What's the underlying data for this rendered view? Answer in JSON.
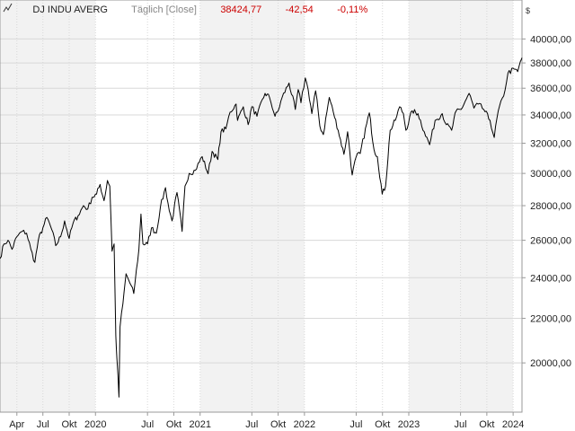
{
  "header": {
    "instrument": "DJ INDU AVERG",
    "interval": "Täglich [Close]",
    "last": "38424,77",
    "change": "-42,54",
    "change_pct": "-0,11%",
    "currency": "$"
  },
  "colors": {
    "line": "#000000",
    "negative": "#cc0000",
    "band": "#f2f2f2",
    "grid": "#d8d8d8",
    "axis": "#999999",
    "interval_text": "#888888"
  },
  "chart_data": {
    "type": "line",
    "title": "",
    "xlabel": "",
    "ylabel": "",
    "y_scale": "log",
    "ylim": [
      18000,
      42000
    ],
    "y_ticks": [
      20000,
      22000,
      24000,
      26000,
      28000,
      30000,
      32000,
      34000,
      36000,
      38000,
      40000
    ],
    "y_tick_labels": [
      "20000,00",
      "22000,00",
      "24000,00",
      "26000,00",
      "28000,00",
      "30000,00",
      "32000,00",
      "34000,00",
      "36000,00",
      "38000,00",
      "40000,00"
    ],
    "x_range": [
      "2019-02-01",
      "2024-02-01"
    ],
    "x_ticks": [
      {
        "date": "2019-04-01",
        "label": "Apr"
      },
      {
        "date": "2019-07-01",
        "label": "Jul"
      },
      {
        "date": "2019-10-01",
        "label": "Okt"
      },
      {
        "date": "2020-01-01",
        "label": "2020"
      },
      {
        "date": "2020-07-01",
        "label": "Jul"
      },
      {
        "date": "2020-10-01",
        "label": "Okt"
      },
      {
        "date": "2021-01-01",
        "label": "2021"
      },
      {
        "date": "2021-07-01",
        "label": "Jul"
      },
      {
        "date": "2021-10-01",
        "label": "Okt"
      },
      {
        "date": "2022-01-01",
        "label": "2022"
      },
      {
        "date": "2022-07-01",
        "label": "Jul"
      },
      {
        "date": "2022-10-01",
        "label": "Okt"
      },
      {
        "date": "2023-01-01",
        "label": "2023"
      },
      {
        "date": "2023-07-01",
        "label": "Jul"
      },
      {
        "date": "2023-10-01",
        "label": "Okt"
      },
      {
        "date": "2024-01-01",
        "label": "2024"
      }
    ],
    "shaded_years": [
      2019,
      2021,
      2023
    ],
    "grid": true,
    "series": [
      {
        "points": [
          [
            "2019-02-01",
            25000
          ],
          [
            "2019-02-15",
            25800
          ],
          [
            "2019-03-01",
            26000
          ],
          [
            "2019-03-15",
            25500
          ],
          [
            "2019-04-01",
            26200
          ],
          [
            "2019-04-20",
            26500
          ],
          [
            "2019-05-05",
            26400
          ],
          [
            "2019-05-20",
            25500
          ],
          [
            "2019-06-03",
            24800
          ],
          [
            "2019-06-15",
            26000
          ],
          [
            "2019-07-01",
            26700
          ],
          [
            "2019-07-15",
            27300
          ],
          [
            "2019-08-01",
            26600
          ],
          [
            "2019-08-15",
            25700
          ],
          [
            "2019-09-01",
            26200
          ],
          [
            "2019-09-15",
            27100
          ],
          [
            "2019-10-01",
            26100
          ],
          [
            "2019-10-15",
            27000
          ],
          [
            "2019-11-01",
            27400
          ],
          [
            "2019-11-20",
            28000
          ],
          [
            "2019-12-05",
            27800
          ],
          [
            "2019-12-20",
            28500
          ],
          [
            "2020-01-05",
            28700
          ],
          [
            "2020-01-17",
            29300
          ],
          [
            "2020-01-31",
            28300
          ],
          [
            "2020-02-12",
            29550
          ],
          [
            "2020-02-20",
            29200
          ],
          [
            "2020-02-28",
            25400
          ],
          [
            "2020-03-06",
            25800
          ],
          [
            "2020-03-12",
            21200
          ],
          [
            "2020-03-16",
            20200
          ],
          [
            "2020-03-23",
            18590
          ],
          [
            "2020-03-27",
            21600
          ],
          [
            "2020-04-06",
            22700
          ],
          [
            "2020-04-17",
            24200
          ],
          [
            "2020-05-01",
            23700
          ],
          [
            "2020-05-14",
            23200
          ],
          [
            "2020-06-01",
            25500
          ],
          [
            "2020-06-08",
            27500
          ],
          [
            "2020-06-15",
            25800
          ],
          [
            "2020-07-01",
            25800
          ],
          [
            "2020-07-15",
            26700
          ],
          [
            "2020-08-01",
            26400
          ],
          [
            "2020-08-15",
            27900
          ],
          [
            "2020-09-02",
            29100
          ],
          [
            "2020-09-15",
            27700
          ],
          [
            "2020-09-25",
            27100
          ],
          [
            "2020-10-12",
            28800
          ],
          [
            "2020-10-30",
            26500
          ],
          [
            "2020-11-09",
            29200
          ],
          [
            "2020-11-24",
            30000
          ],
          [
            "2020-12-15",
            30200
          ],
          [
            "2021-01-08",
            31100
          ],
          [
            "2021-01-29",
            29980
          ],
          [
            "2021-02-12",
            31450
          ],
          [
            "2021-03-04",
            30900
          ],
          [
            "2021-03-15",
            32800
          ],
          [
            "2021-04-01",
            33000
          ],
          [
            "2021-04-16",
            34200
          ],
          [
            "2021-05-07",
            34800
          ],
          [
            "2021-05-12",
            33600
          ],
          [
            "2021-06-01",
            34600
          ],
          [
            "2021-06-18",
            33300
          ],
          [
            "2021-07-01",
            34600
          ],
          [
            "2021-07-19",
            33900
          ],
          [
            "2021-08-16",
            35600
          ],
          [
            "2021-09-01",
            35300
          ],
          [
            "2021-09-20",
            33900
          ],
          [
            "2021-10-01",
            34300
          ],
          [
            "2021-10-15",
            35300
          ],
          [
            "2021-11-08",
            36400
          ],
          [
            "2021-11-30",
            34400
          ],
          [
            "2021-12-10",
            35900
          ],
          [
            "2021-12-20",
            34900
          ],
          [
            "2022-01-04",
            36800
          ],
          [
            "2022-01-14",
            35900
          ],
          [
            "2022-01-27",
            34100
          ],
          [
            "2022-02-09",
            35800
          ],
          [
            "2022-02-24",
            33200
          ],
          [
            "2022-03-08",
            32600
          ],
          [
            "2022-03-29",
            35300
          ],
          [
            "2022-04-12",
            34200
          ],
          [
            "2022-04-29",
            32900
          ],
          [
            "2022-05-19",
            31250
          ],
          [
            "2022-06-01",
            32800
          ],
          [
            "2022-06-17",
            29900
          ],
          [
            "2022-07-01",
            31100
          ],
          [
            "2022-07-15",
            31300
          ],
          [
            "2022-08-16",
            34150
          ],
          [
            "2022-09-01",
            31600
          ],
          [
            "2022-09-13",
            31100
          ],
          [
            "2022-09-30",
            28700
          ],
          [
            "2022-10-12",
            29200
          ],
          [
            "2022-10-28",
            32900
          ],
          [
            "2022-11-15",
            33600
          ],
          [
            "2022-11-30",
            34600
          ],
          [
            "2022-12-13",
            34100
          ],
          [
            "2022-12-22",
            32900
          ],
          [
            "2023-01-13",
            34300
          ],
          [
            "2023-02-02",
            34100
          ],
          [
            "2023-02-24",
            32800
          ],
          [
            "2023-03-15",
            31900
          ],
          [
            "2023-04-03",
            33600
          ],
          [
            "2023-04-28",
            34100
          ],
          [
            "2023-05-12",
            33300
          ],
          [
            "2023-05-31",
            32900
          ],
          [
            "2023-06-16",
            34300
          ],
          [
            "2023-07-03",
            34400
          ],
          [
            "2023-07-31",
            35600
          ],
          [
            "2023-08-17",
            34500
          ],
          [
            "2023-09-01",
            34800
          ],
          [
            "2023-09-20",
            34400
          ],
          [
            "2023-10-12",
            33600
          ],
          [
            "2023-10-27",
            32400
          ],
          [
            "2023-11-10",
            34300
          ],
          [
            "2023-11-29",
            35400
          ],
          [
            "2023-12-14",
            37200
          ],
          [
            "2024-01-05",
            37500
          ],
          [
            "2024-01-17",
            37300
          ],
          [
            "2024-01-26",
            38100
          ],
          [
            "2024-02-01",
            38424.77
          ]
        ]
      }
    ]
  }
}
